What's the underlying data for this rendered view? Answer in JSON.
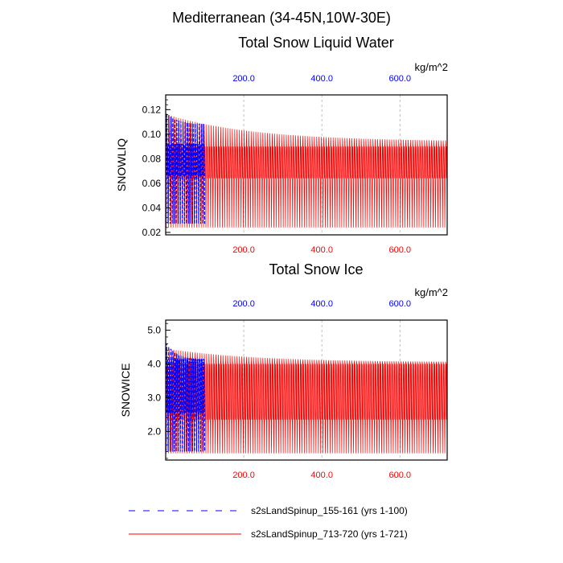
{
  "figure": {
    "title": "Mediterranean (34-45N,10W-30E)"
  },
  "legend": [
    {
      "label": "s2sLandSpinup_155-161 (yrs 1-100)",
      "color": "#0000ff",
      "style": "dashed"
    },
    {
      "label": "s2sLandSpinup_713-720 (yrs 1-721)",
      "color": "#ff0000",
      "style": "solid"
    }
  ],
  "colors": {
    "blue": "#0000ff",
    "red": "#ff0000",
    "axis": "#000000",
    "grid": "#b0b0b0"
  },
  "chart_data": [
    {
      "type": "line",
      "title": "Total Snow Liquid Water",
      "units": "kg/m^2",
      "ylabel": "SNOWLIQ",
      "xlim": [
        0,
        721
      ],
      "ylim": [
        0.018,
        0.132
      ],
      "yticks": [
        0.02,
        0.04,
        0.06,
        0.08,
        0.1,
        0.12
      ],
      "ytick_labels": [
        "0.02",
        "0.04",
        "0.06",
        "0.08",
        "0.10",
        "0.12"
      ],
      "top_xticks": [
        200,
        400,
        600
      ],
      "top_xtick_labels": [
        "200.0",
        "400.0",
        "600.0"
      ],
      "bottom_xticks": [
        200,
        400,
        600
      ],
      "bottom_xtick_labels": [
        "200.0",
        "400.0",
        "600.0"
      ],
      "series": [
        {
          "name": "s2sLandSpinup_155-161 (yrs 1-100)",
          "color": "#0000ff",
          "style": "dashed",
          "x_range": [
            1,
            100
          ],
          "cycles": 19,
          "peak_start": 0.117,
          "peak_end": 0.108,
          "mid_high": 0.092,
          "mid_low": 0.066,
          "min_value": 0.027
        },
        {
          "name": "s2sLandSpinup_713-720 (yrs 1-721)",
          "color": "#ff0000",
          "style": "solid",
          "x_range": [
            1,
            721
          ],
          "cycles": 120,
          "peak_start": 0.116,
          "peak_end": 0.094,
          "mid_high": 0.09,
          "mid_low": 0.064,
          "min_value": 0.024
        }
      ]
    },
    {
      "type": "line",
      "title": "Total Snow Ice",
      "units": "kg/m^2",
      "ylabel": "SNOWICE",
      "xlim": [
        0,
        721
      ],
      "ylim": [
        1.15,
        5.3
      ],
      "yticks": [
        2.0,
        3.0,
        4.0,
        5.0
      ],
      "ytick_labels": [
        "2.0",
        "3.0",
        "4.0",
        "5.0"
      ],
      "top_xticks": [
        200,
        400,
        600
      ],
      "top_xtick_labels": [
        "200.0",
        "400.0",
        "600.0"
      ],
      "bottom_xticks": [
        200,
        400,
        600
      ],
      "bottom_xtick_labels": [
        "200.0",
        "400.0",
        "600.0"
      ],
      "series": [
        {
          "name": "s2sLandSpinup_155-161 (yrs 1-100)",
          "color": "#0000ff",
          "style": "dashed",
          "x_range": [
            1,
            100
          ],
          "cycles": 19,
          "peak_start": 4.6,
          "peak_end": 4.1,
          "mid_high": 4.15,
          "mid_low": 2.55,
          "min_value": 1.4
        },
        {
          "name": "s2sLandSpinup_713-720 (yrs 1-721)",
          "color": "#ff0000",
          "style": "solid",
          "x_range": [
            1,
            721
          ],
          "cycles": 120,
          "peak_start": 4.45,
          "peak_end": 4.05,
          "mid_high": 4.0,
          "mid_low": 2.35,
          "min_value": 1.35
        }
      ]
    }
  ]
}
